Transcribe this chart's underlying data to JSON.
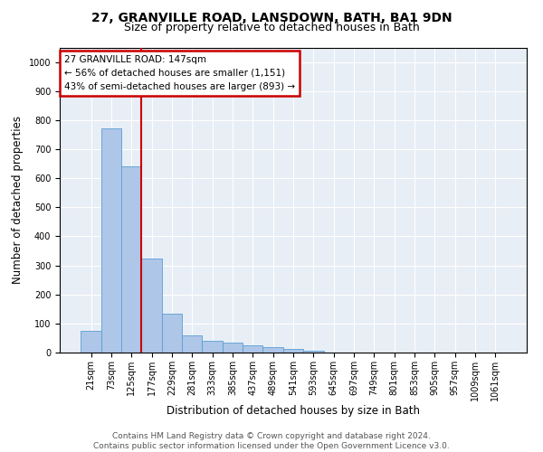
{
  "title1": "27, GRANVILLE ROAD, LANSDOWN, BATH, BA1 9DN",
  "title2": "Size of property relative to detached houses in Bath",
  "xlabel": "Distribution of detached houses by size in Bath",
  "ylabel": "Number of detached properties",
  "categories": [
    "21sqm",
    "73sqm",
    "125sqm",
    "177sqm",
    "229sqm",
    "281sqm",
    "333sqm",
    "385sqm",
    "437sqm",
    "489sqm",
    "541sqm",
    "593sqm",
    "645sqm",
    "697sqm",
    "749sqm",
    "801sqm",
    "853sqm",
    "905sqm",
    "957sqm",
    "1009sqm",
    "1061sqm"
  ],
  "bar_values": [
    75,
    770,
    640,
    325,
    135,
    60,
    40,
    35,
    25,
    20,
    12,
    5,
    1,
    0,
    0,
    0,
    0,
    0,
    0,
    0,
    0
  ],
  "bar_color": "#aec6e8",
  "bar_edge_color": "#5a9fd4",
  "vline_x": 2.5,
  "vline_color": "#cc0000",
  "annotation_box_text": "27 GRANVILLE ROAD: 147sqm\n← 56% of detached houses are smaller (1,151)\n43% of semi-detached houses are larger (893) →",
  "box_color": "#cc0000",
  "ylim": [
    0,
    1050
  ],
  "yticks": [
    0,
    100,
    200,
    300,
    400,
    500,
    600,
    700,
    800,
    900,
    1000
  ],
  "bg_color": "#e8eef5",
  "footer": "Contains HM Land Registry data © Crown copyright and database right 2024.\nContains public sector information licensed under the Open Government Licence v3.0.",
  "title1_fontsize": 10,
  "title2_fontsize": 9,
  "xlabel_fontsize": 8.5,
  "ylabel_fontsize": 8.5,
  "tick_fontsize": 7,
  "annotation_fontsize": 7.5,
  "footer_fontsize": 6.5
}
